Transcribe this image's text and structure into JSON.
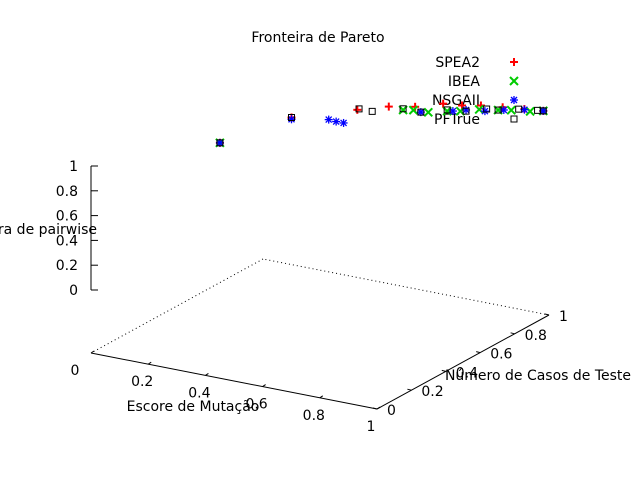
{
  "chart_data": {
    "type": "scatter",
    "projection": "3d",
    "title": "Fronteira de Pareto",
    "xlabel": "Escore de Mutação",
    "ylabel": "Número de Casos de Teste",
    "zlabel": "Cobertura de pairwise",
    "xlim": [
      0,
      1
    ],
    "ylim": [
      0,
      1
    ],
    "zlim": [
      0,
      1
    ],
    "x_ticks": [
      "0",
      "0.2",
      "0.4",
      "0.6",
      "0.8",
      "1"
    ],
    "y_ticks": [
      "0",
      "0.2",
      "0.4",
      "0.6",
      "0.8",
      "1"
    ],
    "z_ticks": [
      "0",
      "0.2",
      "0.4",
      "0.6",
      "0.8",
      "1"
    ],
    "legend_position": "top-right",
    "grid": false,
    "series": [
      {
        "name": "SPEA2",
        "marker": "+",
        "color": "#ff0000",
        "points": [
          [
            0.12,
            0.55,
            0.32
          ],
          [
            0.25,
            0.75,
            0.55
          ],
          [
            0.42,
            0.85,
            0.68
          ],
          [
            0.5,
            0.9,
            0.73
          ],
          [
            0.58,
            0.92,
            0.77
          ],
          [
            0.66,
            0.95,
            0.85
          ],
          [
            0.72,
            0.96,
            0.86
          ],
          [
            0.78,
            0.97,
            0.9
          ],
          [
            0.85,
            0.98,
            0.92
          ],
          [
            0.92,
            0.99,
            0.94
          ],
          [
            0.98,
            1.0,
            0.95
          ]
        ]
      },
      {
        "name": "IBEA",
        "marker": "x",
        "color": "#00cc00",
        "points": [
          [
            0.12,
            0.55,
            0.32
          ],
          [
            0.55,
            0.9,
            0.72
          ],
          [
            0.58,
            0.91,
            0.73
          ],
          [
            0.62,
            0.93,
            0.7
          ],
          [
            0.68,
            0.94,
            0.76
          ],
          [
            0.72,
            0.95,
            0.78
          ],
          [
            0.78,
            0.96,
            0.85
          ],
          [
            0.84,
            0.97,
            0.88
          ],
          [
            0.88,
            0.98,
            0.9
          ],
          [
            0.94,
            0.99,
            0.92
          ],
          [
            0.98,
            1.0,
            0.95
          ]
        ]
      },
      {
        "name": "NSGAII",
        "marker": "*",
        "color": "#0000ff",
        "points": [
          [
            0.12,
            0.55,
            0.32
          ],
          [
            0.25,
            0.75,
            0.52
          ],
          [
            0.35,
            0.8,
            0.53
          ],
          [
            0.37,
            0.81,
            0.5
          ],
          [
            0.39,
            0.82,
            0.48
          ],
          [
            0.6,
            0.92,
            0.7
          ],
          [
            0.7,
            0.94,
            0.78
          ],
          [
            0.74,
            0.95,
            0.82
          ],
          [
            0.8,
            0.96,
            0.84
          ],
          [
            0.86,
            0.97,
            0.9
          ],
          [
            0.92,
            0.99,
            0.93
          ],
          [
            0.98,
            1.0,
            0.95
          ]
        ]
      },
      {
        "name": "PFTrue",
        "marker": "square",
        "color": "#000000",
        "points": [
          [
            0.12,
            0.55,
            0.32
          ],
          [
            0.25,
            0.75,
            0.55
          ],
          [
            0.42,
            0.86,
            0.68
          ],
          [
            0.46,
            0.87,
            0.66
          ],
          [
            0.55,
            0.9,
            0.74
          ],
          [
            0.6,
            0.92,
            0.7
          ],
          [
            0.68,
            0.94,
            0.78
          ],
          [
            0.74,
            0.95,
            0.8
          ],
          [
            0.8,
            0.97,
            0.86
          ],
          [
            0.84,
            0.97,
            0.88
          ],
          [
            0.9,
            0.99,
            0.92
          ],
          [
            0.96,
            1.0,
            0.94
          ],
          [
            0.98,
            1.0,
            0.95
          ]
        ]
      }
    ]
  }
}
